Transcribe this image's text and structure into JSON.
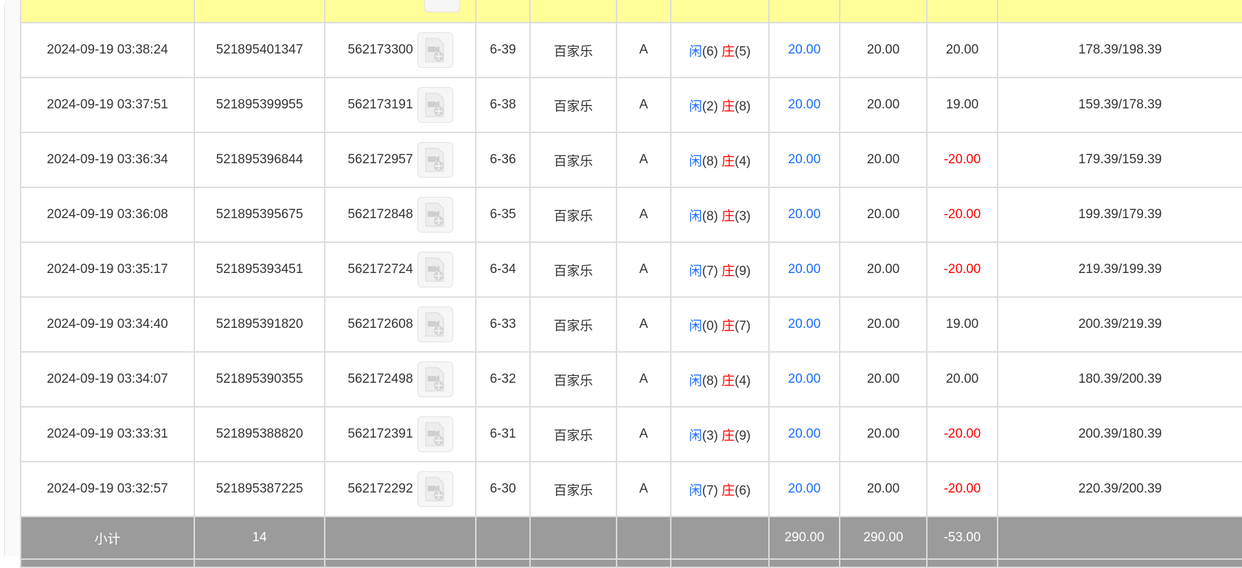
{
  "rows": [
    {
      "time": "2024-09-19 03:38:24",
      "bet_id": "521895401347",
      "game_id": "562173300",
      "round": "6-39",
      "game": "百家乐",
      "table": "A",
      "player_label": "闲",
      "player": "(6)",
      "banker_label": "庄",
      "banker": "(5)",
      "bet": "20.00",
      "valid": "20.00",
      "win": "20.00",
      "win_negative": false,
      "balance": "178.39/198.39"
    },
    {
      "time": "2024-09-19 03:37:51",
      "bet_id": "521895399955",
      "game_id": "562173191",
      "round": "6-38",
      "game": "百家乐",
      "table": "A",
      "player_label": "闲",
      "player": "(2)",
      "banker_label": "庄",
      "banker": "(8)",
      "bet": "20.00",
      "valid": "20.00",
      "win": "19.00",
      "win_negative": false,
      "balance": "159.39/178.39"
    },
    {
      "time": "2024-09-19 03:36:34",
      "bet_id": "521895396844",
      "game_id": "562172957",
      "round": "6-36",
      "game": "百家乐",
      "table": "A",
      "player_label": "闲",
      "player": "(8)",
      "banker_label": "庄",
      "banker": "(4)",
      "bet": "20.00",
      "valid": "20.00",
      "win": "-20.00",
      "win_negative": true,
      "balance": "179.39/159.39"
    },
    {
      "time": "2024-09-19 03:36:08",
      "bet_id": "521895395675",
      "game_id": "562172848",
      "round": "6-35",
      "game": "百家乐",
      "table": "A",
      "player_label": "闲",
      "player": "(8)",
      "banker_label": "庄",
      "banker": "(3)",
      "bet": "20.00",
      "valid": "20.00",
      "win": "-20.00",
      "win_negative": true,
      "balance": "199.39/179.39"
    },
    {
      "time": "2024-09-19 03:35:17",
      "bet_id": "521895393451",
      "game_id": "562172724",
      "round": "6-34",
      "game": "百家乐",
      "table": "A",
      "player_label": "闲",
      "player": "(7)",
      "banker_label": "庄",
      "banker": "(9)",
      "bet": "20.00",
      "valid": "20.00",
      "win": "-20.00",
      "win_negative": true,
      "balance": "219.39/199.39"
    },
    {
      "time": "2024-09-19 03:34:40",
      "bet_id": "521895391820",
      "game_id": "562172608",
      "round": "6-33",
      "game": "百家乐",
      "table": "A",
      "player_label": "闲",
      "player": "(0)",
      "banker_label": "庄",
      "banker": "(7)",
      "bet": "20.00",
      "valid": "20.00",
      "win": "19.00",
      "win_negative": false,
      "balance": "200.39/219.39"
    },
    {
      "time": "2024-09-19 03:34:07",
      "bet_id": "521895390355",
      "game_id": "562172498",
      "round": "6-32",
      "game": "百家乐",
      "table": "A",
      "player_label": "闲",
      "player": "(8)",
      "banker_label": "庄",
      "banker": "(4)",
      "bet": "20.00",
      "valid": "20.00",
      "win": "20.00",
      "win_negative": false,
      "balance": "180.39/200.39"
    },
    {
      "time": "2024-09-19 03:33:31",
      "bet_id": "521895388820",
      "game_id": "562172391",
      "round": "6-31",
      "game": "百家乐",
      "table": "A",
      "player_label": "闲",
      "player": "(3)",
      "banker_label": "庄",
      "banker": "(9)",
      "bet": "20.00",
      "valid": "20.00",
      "win": "-20.00",
      "win_negative": true,
      "balance": "200.39/180.39"
    },
    {
      "time": "2024-09-19 03:32:57",
      "bet_id": "521895387225",
      "game_id": "562172292",
      "round": "6-30",
      "game": "百家乐",
      "table": "A",
      "player_label": "闲",
      "player": "(7)",
      "banker_label": "庄",
      "banker": "(6)",
      "bet": "20.00",
      "valid": "20.00",
      "win": "-20.00",
      "win_negative": true,
      "balance": "220.39/200.39"
    }
  ],
  "subtotal": {
    "label": "小计",
    "count": "14",
    "bet": "290.00",
    "valid": "290.00",
    "win": "-53.00"
  },
  "colors": {
    "header_bg": "#ffff99",
    "subtotal_bg": "#9b9b9b",
    "player": "#1a6cff",
    "negative": "#ff0000"
  },
  "icons": {
    "replay": "video-replay-icon"
  }
}
